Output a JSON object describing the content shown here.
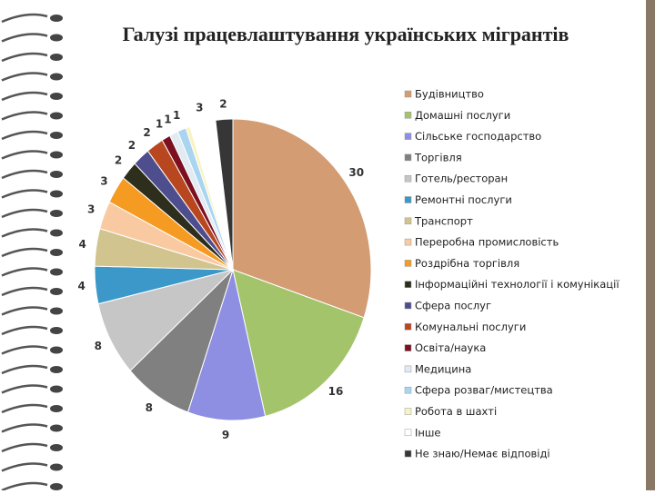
{
  "chart_data": {
    "type": "pie",
    "title": "Галузі працевлаштування українських мігрантів",
    "categories": [
      "Будівництво",
      "Домашні послуги",
      "Сільське господарство",
      "Торгівля",
      "Готель/ресторан",
      "Ремонтні послуги",
      "Транспорт",
      "Переробна промисловість",
      "Роздрібна торгівля",
      "Інформаційні технології і комунікації",
      "Сфера послуг",
      "Комунальні послуги",
      "Освіта/наука",
      "Медицина",
      "Сфера розваг/мистецтва",
      "Робота в шахті",
      "Інше",
      "Не знаю/Немає відповіді"
    ],
    "values": [
      30,
      16,
      9,
      8,
      8,
      4,
      4,
      3,
      3,
      2,
      2,
      2,
      1,
      1,
      1,
      0.5,
      3,
      2
    ],
    "value_labels": [
      "30",
      "16",
      "9",
      "8",
      "8",
      "4",
      "4",
      "3",
      "3",
      "2",
      "2",
      "2",
      "1",
      "1",
      "1",
      null,
      "3",
      "2"
    ],
    "colors": [
      "#d39c72",
      "#a3c46a",
      "#8e8ee2",
      "#808080",
      "#c6c6c6",
      "#3b98c8",
      "#d2c48e",
      "#f9caa2",
      "#f59b22",
      "#2e2e1c",
      "#4e4e8e",
      "#b8471f",
      "#7c1020",
      "#e2eaf2",
      "#a9d5f1",
      "#f8f3c0",
      "#ffffff",
      "#363636"
    ],
    "legend": "right"
  }
}
